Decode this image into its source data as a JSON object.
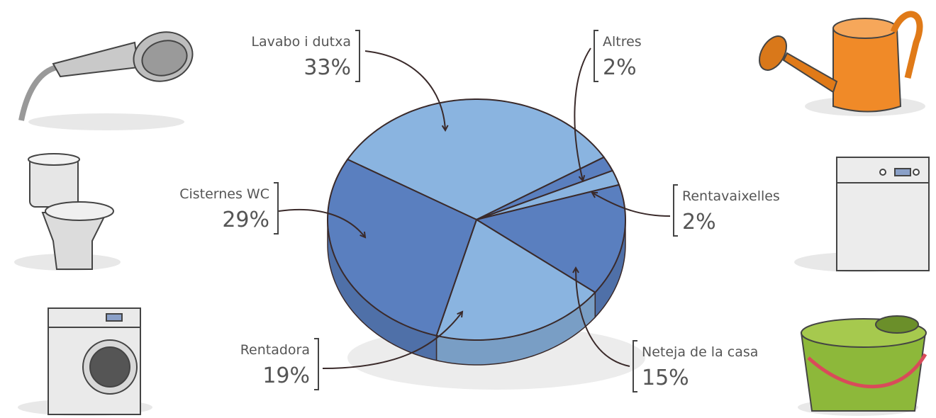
{
  "chart_data": {
    "type": "pie",
    "categories": [
      "Lavabo i dutxa",
      "Altres",
      "Rentavaixelles",
      "Neteja de la casa",
      "Rentadora",
      "Cisternes WC"
    ],
    "values": [
      33,
      2,
      2,
      15,
      19,
      29
    ],
    "value_labels": [
      "33%",
      "2%",
      "2%",
      "15%",
      "19%",
      "29%"
    ],
    "colors": [
      "#8ab4e0",
      "#5a7fbf",
      "#8ab4e0",
      "#5a7fbf",
      "#8ab4e0",
      "#5a7fbf"
    ]
  }
}
